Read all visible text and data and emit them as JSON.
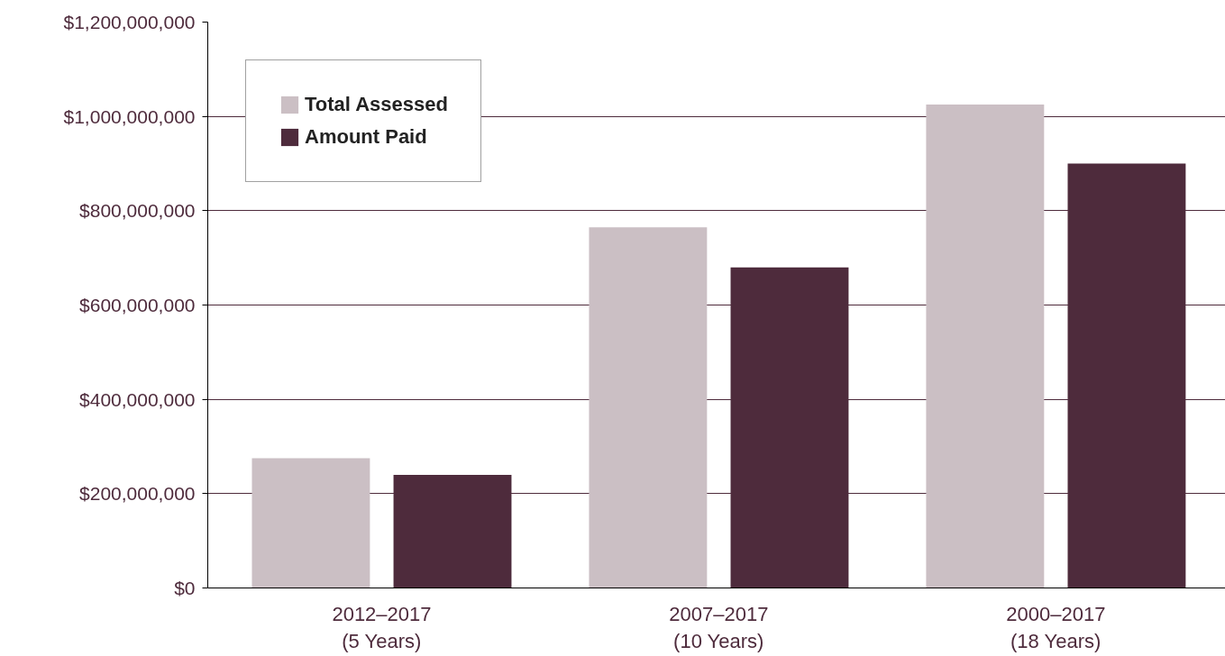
{
  "chart_data": {
    "type": "bar",
    "categories": [
      "2012–2017\n(5 Years)",
      "2007–2017\n(10 Years)",
      "2000–2017\n(18 Years)"
    ],
    "series": [
      {
        "name": "Total Assessed",
        "color": "#cbbfc4",
        "values": [
          275000000,
          765000000,
          1025000000
        ]
      },
      {
        "name": "Amount Paid",
        "color": "#4e2b3c",
        "values": [
          240000000,
          680000000,
          900000000
        ]
      }
    ],
    "ylim": [
      0,
      1200000000
    ],
    "yticks": [
      {
        "value": 0,
        "label": "$0"
      },
      {
        "value": 200000000,
        "label": "$200,000,000"
      },
      {
        "value": 400000000,
        "label": "$400,000,000"
      },
      {
        "value": 600000000,
        "label": "$600,000,000"
      },
      {
        "value": 800000000,
        "label": "$800,000,000"
      },
      {
        "value": 1000000000,
        "label": "$1,000,000,000"
      },
      {
        "value": 1200000000,
        "label": "$1,200,000,000"
      }
    ],
    "grid": "y",
    "legend": "top left"
  }
}
